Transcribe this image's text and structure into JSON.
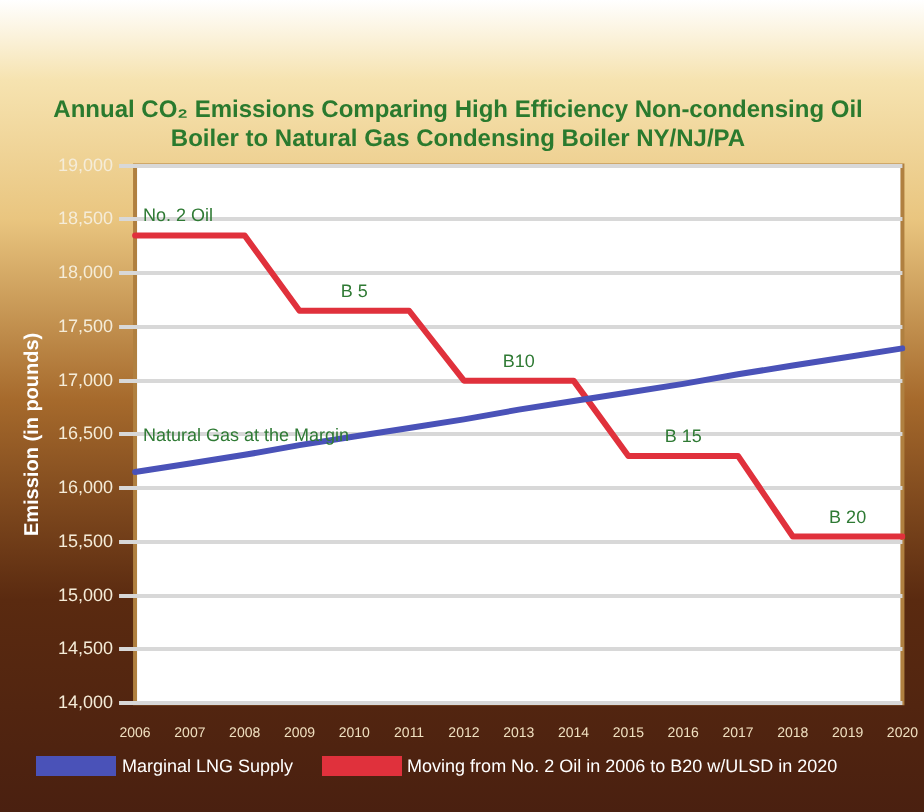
{
  "chart_data": {
    "type": "line",
    "title": "Annual CO₂ Emissions Comparing High Efficiency Non-condensing Oil Boiler to Natural Gas Condensing Boiler NY/NJ/PA",
    "ylabel": "Emission (in pounds)",
    "categories": [
      "2006",
      "2007",
      "2008",
      "2009",
      "2010",
      "2011",
      "2012",
      "2013",
      "2014",
      "2015",
      "2016",
      "2017",
      "2018",
      "2019",
      "2020"
    ],
    "series": [
      {
        "name": "Marginal LNG Supply",
        "color": "#4a52b8",
        "values": [
          16150,
          16230,
          16310,
          16400,
          16480,
          16560,
          16640,
          16730,
          16810,
          16890,
          16970,
          17060,
          17140,
          17220,
          17300
        ]
      },
      {
        "name": "Moving from No. 2 Oil in 2006 to B20 w/ULSD in 2020",
        "color": "#e0313c",
        "values": [
          18350,
          18350,
          18350,
          17650,
          17650,
          17650,
          17000,
          17000,
          17000,
          16300,
          16300,
          16300,
          15550,
          15550,
          15550
        ]
      }
    ],
    "ylim": [
      14000,
      19000
    ],
    "yticks": [
      {
        "value": 14000,
        "label": "14,000"
      },
      {
        "value": 14500,
        "label": "14,500"
      },
      {
        "value": 15000,
        "label": "15,000"
      },
      {
        "value": 15500,
        "label": "15,500"
      },
      {
        "value": 16000,
        "label": "16,000"
      },
      {
        "value": 16500,
        "label": "16,500"
      },
      {
        "value": 17000,
        "label": "17,000"
      },
      {
        "value": 17500,
        "label": "17,500"
      },
      {
        "value": 18000,
        "label": "18,000"
      },
      {
        "value": 18500,
        "label": "18,500"
      },
      {
        "value": 19000,
        "label": "19,000"
      }
    ],
    "annotations": [
      {
        "text": "No. 2 Oil",
        "x": "2006",
        "y": 18350
      },
      {
        "text": "B 5",
        "x": "2010",
        "y": 17650
      },
      {
        "text": "B10",
        "x": "2013",
        "y": 17000
      },
      {
        "text": "B 15",
        "x": "2016",
        "y": 16300
      },
      {
        "text": "B 20",
        "x": "2019",
        "y": 15550
      },
      {
        "text": "Natural Gas at the Margin",
        "x": "2008",
        "y": 16310
      }
    ],
    "grid": "y",
    "legend": "bottom",
    "marker": "none",
    "line_style": "solid"
  }
}
